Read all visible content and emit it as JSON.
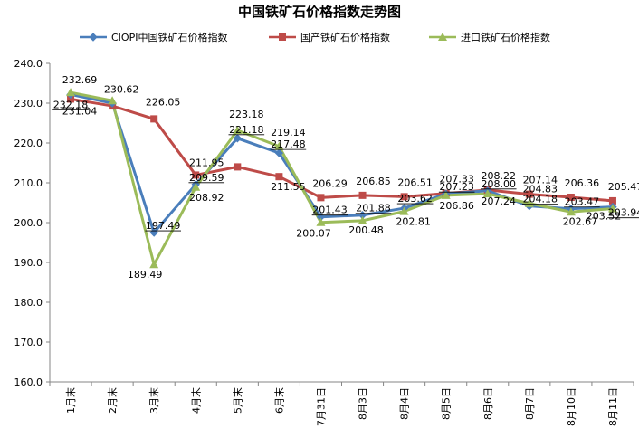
{
  "chart_data": {
    "type": "line",
    "title": "中国铁矿石价格指数走势图",
    "categories": [
      "1月末",
      "2月末",
      "3月末",
      "4月末",
      "5月末",
      "6月末",
      "7月31日",
      "8月3日",
      "8月4日",
      "8月5日",
      "8月6日",
      "8月7日",
      "8月10日",
      "8月11日"
    ],
    "ylim": [
      160,
      240
    ],
    "yticks": [
      "160.0",
      "170.0",
      "180.0",
      "190.0",
      "200.0",
      "210.0",
      "220.0",
      "230.0",
      "240.0"
    ],
    "grid": false,
    "legend_position": "top",
    "series": [
      {
        "name": "CIOPI中国铁矿石价格指数",
        "color": "#4a7ebb",
        "marker": "diamond",
        "values": [
          232.18,
          230.0,
          197.49,
          209.59,
          221.18,
          217.48,
          201.43,
          201.88,
          203.62,
          207.23,
          208.0,
          204.18,
          203.47,
          203.94
        ],
        "labels": [
          "232.18",
          null,
          "197.49",
          "209.59",
          "221.18",
          "217.48",
          "201.43",
          "201.88",
          "203.62",
          "207.23",
          "208.00",
          "204.18",
          "203.47",
          "203.94"
        ]
      },
      {
        "name": "国产铁矿石价格指数",
        "color": "#be4b48",
        "marker": "square",
        "values": [
          231.04,
          229.3,
          226.05,
          211.95,
          214.0,
          211.55,
          206.29,
          206.85,
          206.51,
          207.33,
          208.22,
          207.14,
          206.36,
          205.47
        ],
        "labels": [
          "231.04",
          null,
          "226.05",
          "211.95",
          null,
          "211.55",
          "206.29",
          "206.85",
          "206.51",
          "207.33",
          "208.22",
          "207.14",
          "206.36",
          "205.47"
        ]
      },
      {
        "name": "进口铁矿石价格指数",
        "color": "#9bbb59",
        "marker": "triangle",
        "values": [
          232.69,
          230.62,
          189.49,
          208.92,
          223.18,
          219.14,
          200.07,
          200.48,
          202.81,
          206.86,
          207.24,
          204.83,
          202.67,
          203.52
        ],
        "labels": [
          "232.69",
          "230.62",
          "189.49",
          "208.92",
          "223.18",
          "219.14",
          "200.07",
          "200.48",
          "202.81",
          "206.86",
          "207.24",
          "204.83",
          "202.67",
          "203.52"
        ]
      }
    ]
  }
}
